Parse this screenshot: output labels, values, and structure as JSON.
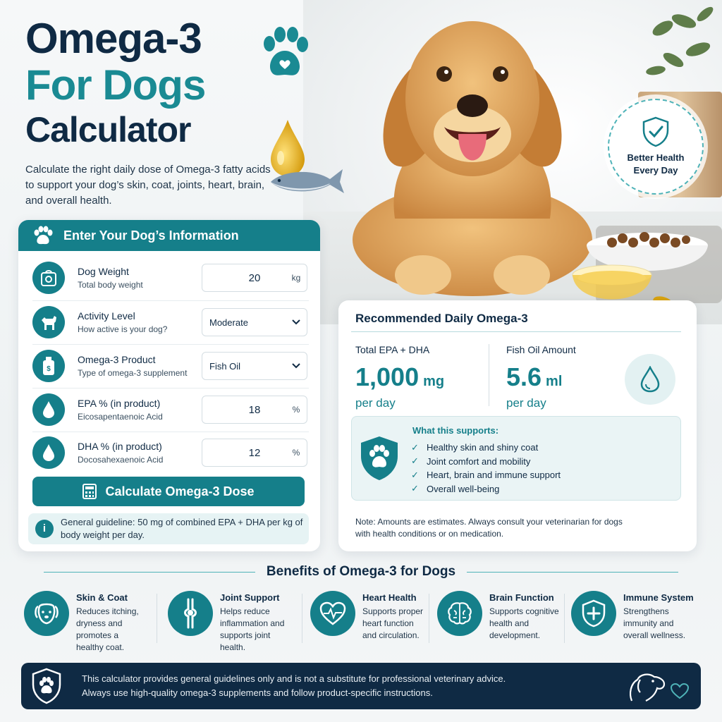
{
  "title": {
    "line1": "Omega-3",
    "line2": "For Dogs",
    "line3": "Calculator"
  },
  "subtitle": "Calculate the right daily dose of Omega-3 fatty acids to support your dog’s skin, coat, joints, heart, brain, and overall health.",
  "badge": {
    "line1": "Better Health",
    "line2": "Every Day",
    "icon": "shield-check-icon"
  },
  "form": {
    "header": "Enter Your Dog’s Information",
    "fields": [
      {
        "label": "Dog Weight",
        "sub": "Total body weight",
        "value": "20",
        "unit": "kg",
        "icon": "scale-icon"
      },
      {
        "label": "Activity Level",
        "sub": "How active is your dog?",
        "value": "Moderate",
        "icon": "dog-icon"
      },
      {
        "label": "Omega-3 Product",
        "sub": "Type of omega-3 supplement",
        "value": "Fish Oil",
        "icon": "bottle-icon"
      },
      {
        "label": "EPA % (in product)",
        "sub": "Eicosapentaenoic Acid",
        "value": "18",
        "unit": "%",
        "icon": "drop-icon"
      },
      {
        "label": "DHA % (in product)",
        "sub": "Docosahexaenoic Acid",
        "value": "12",
        "unit": "%",
        "icon": "drop-icon"
      }
    ],
    "button": "Calculate Omega-3 Dose",
    "guideline": "General guideline: 50 mg of combined EPA + DHA per kg of body weight per day."
  },
  "result": {
    "title": "Recommended Daily Omega-3",
    "total_label": "Total EPA + DHA",
    "total_value": "1,000",
    "total_unit": "mg",
    "total_per": "per day",
    "oil_label": "Fish Oil Amount",
    "oil_value": "5.6",
    "oil_unit": "ml",
    "oil_per": "per day",
    "supports_head": "What this supports:",
    "supports": [
      "Healthy skin and shiny coat",
      "Joint comfort and mobility",
      "Heart, brain and immune support",
      "Overall well-being"
    ],
    "note": "Note: Amounts are estimates. Always consult your veterinarian for dogs with health conditions or on medication."
  },
  "benefits": {
    "heading": "Benefits of Omega-3 for Dogs",
    "items": [
      {
        "title": "Skin & Coat",
        "desc": [
          "Reduces itching,",
          "dryness and",
          "promotes a",
          "healthy coat."
        ],
        "icon": "dog-face-icon"
      },
      {
        "title": "Joint Support",
        "desc": [
          "Helps reduce",
          "inflammation and",
          "supports joint",
          "health."
        ],
        "icon": "joint-icon"
      },
      {
        "title": "Heart Health",
        "desc": [
          "Supports proper",
          "heart function",
          "and circulation."
        ],
        "icon": "heart-pulse-icon"
      },
      {
        "title": "Brain Function",
        "desc": [
          "Supports cognitive",
          "health and",
          "development."
        ],
        "icon": "brain-icon"
      },
      {
        "title": "Immune System",
        "desc": [
          "Strengthens",
          "immunity and",
          "overall wellness."
        ],
        "icon": "shield-plus-icon"
      }
    ]
  },
  "footer": {
    "line1": "This calculator provides general guidelines only and is not a substitute for professional veterinary advice.",
    "line2": "Always use high-quality omega-3 supplements and follow product-specific instructions."
  },
  "colors": {
    "teal": "#157f8a",
    "navy": "#0f2a44",
    "accent": "#1a8a93"
  }
}
